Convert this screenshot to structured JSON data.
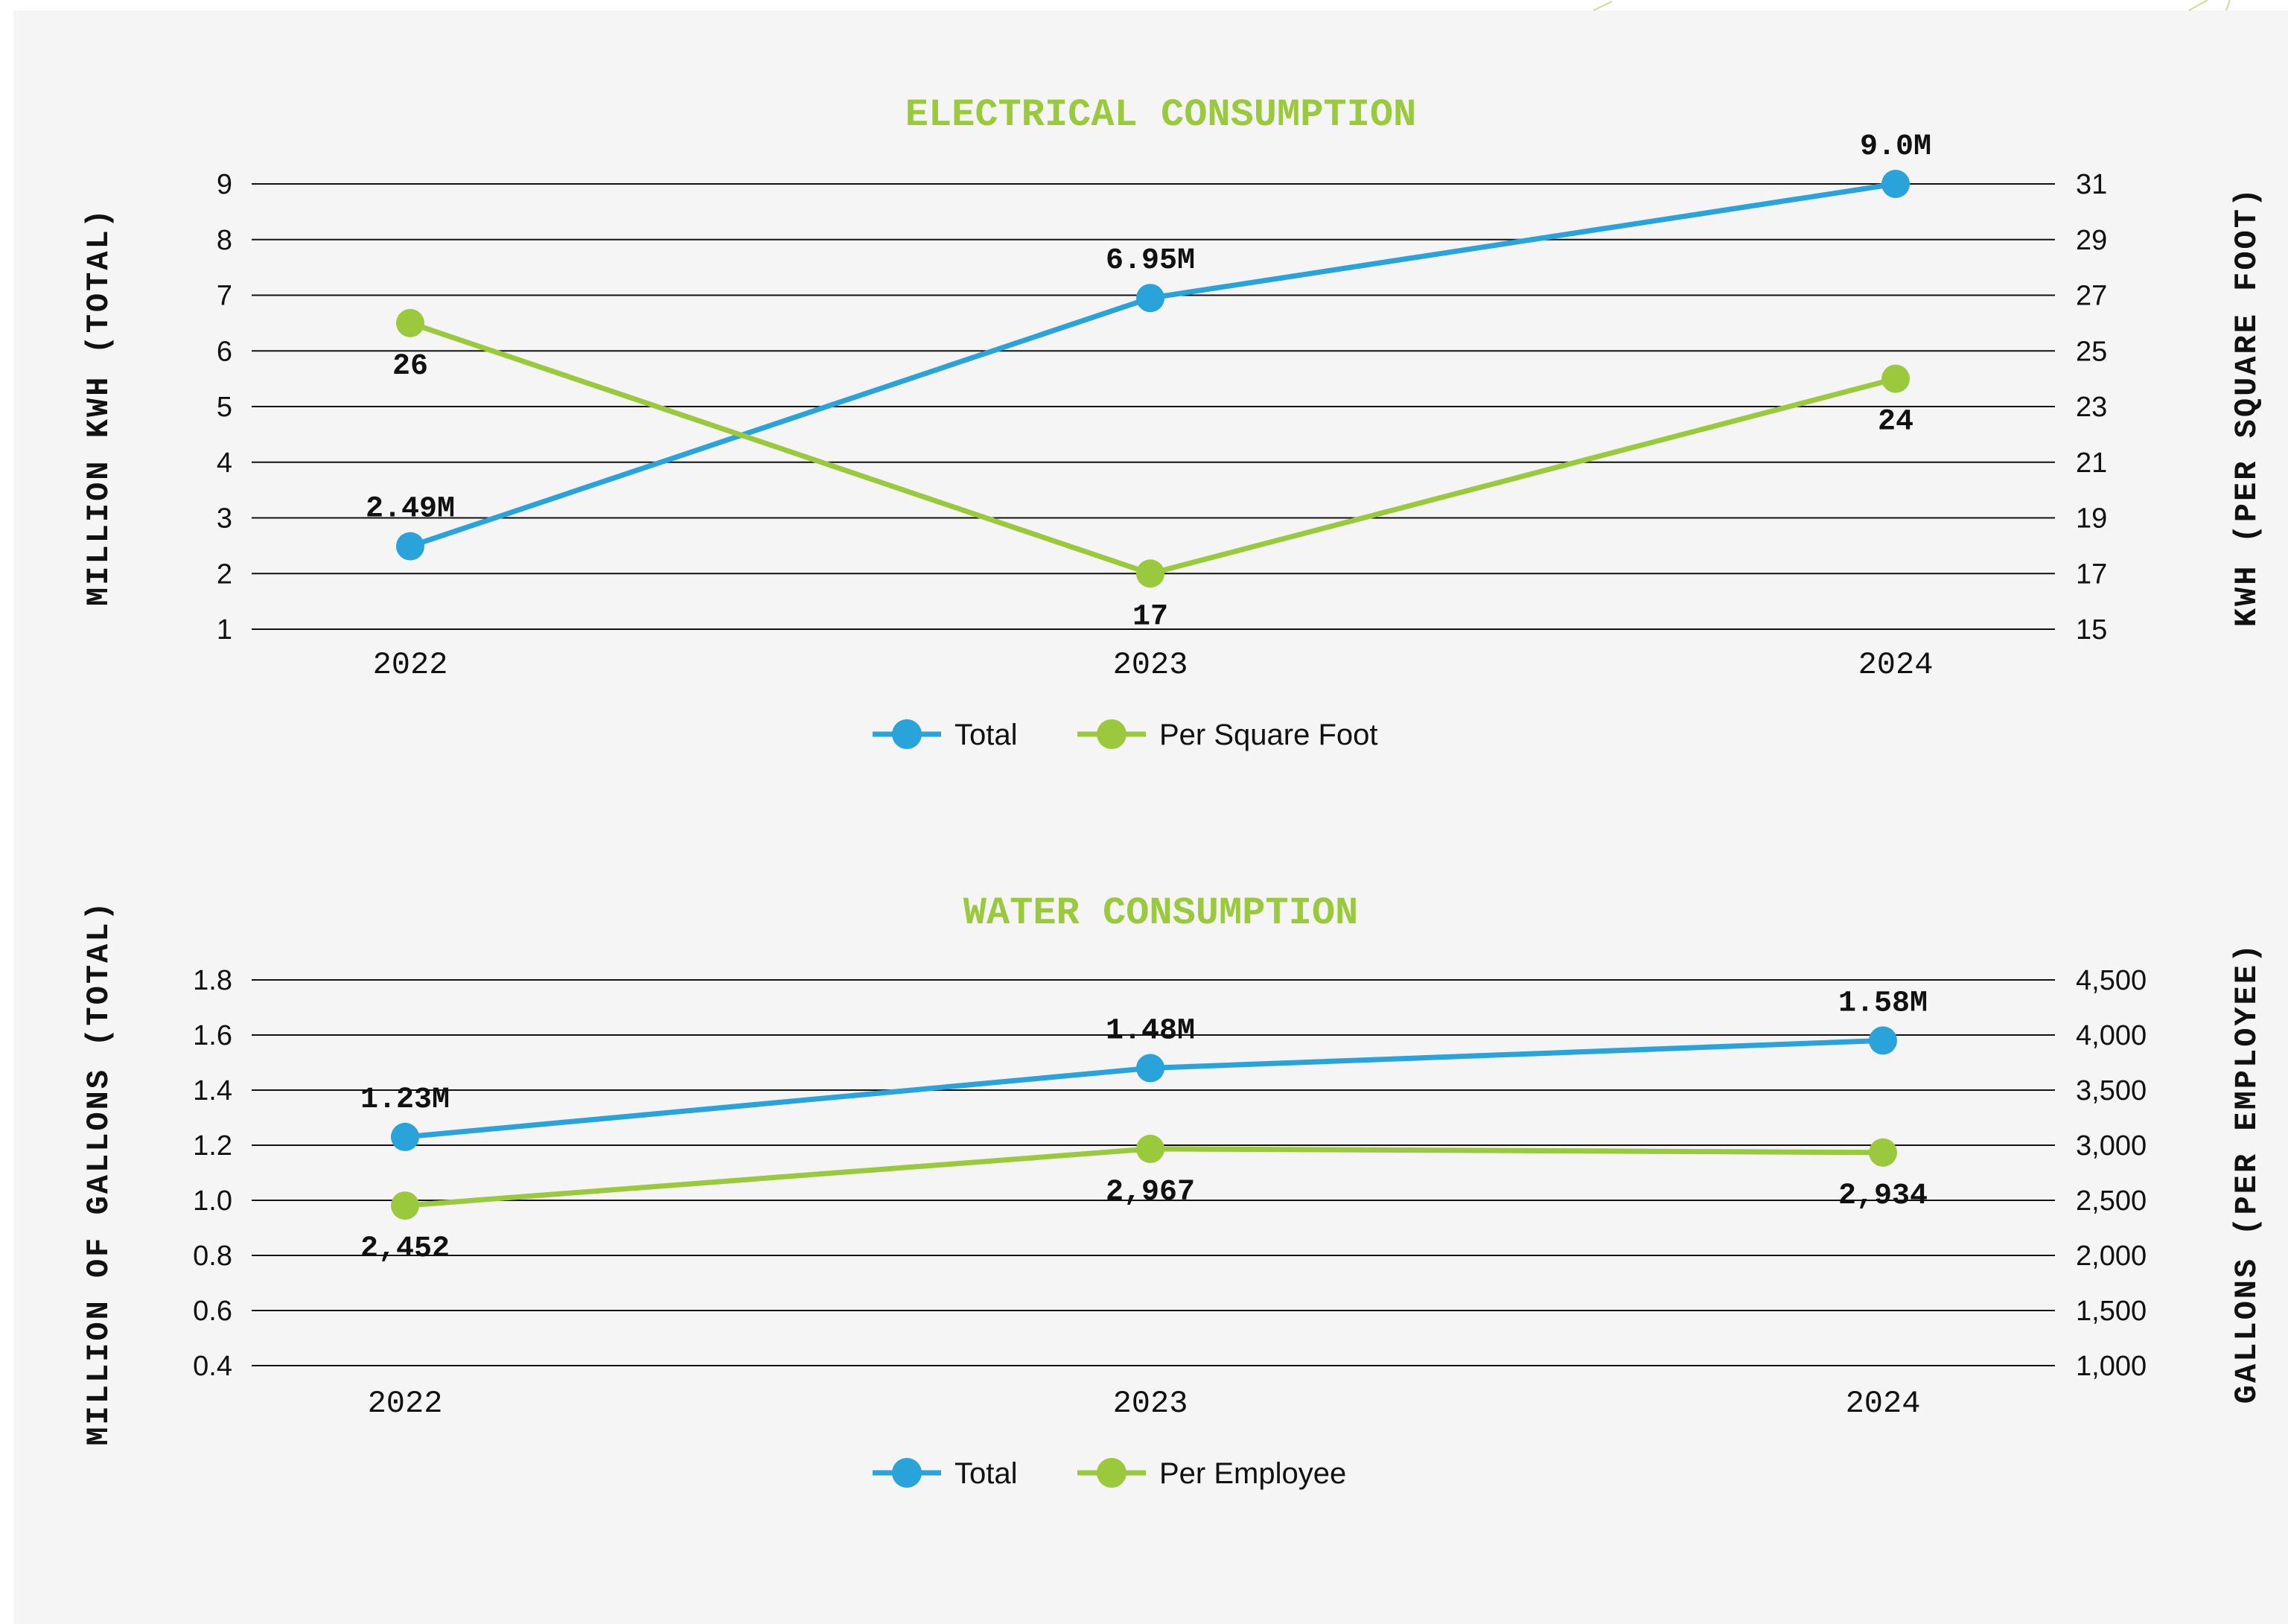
{
  "colors": {
    "title": "#9ac93d",
    "series_total": "#29a3d9",
    "series_secondary": "#9ac93d",
    "grid": "#111111",
    "background": "#f5f5f5"
  },
  "chart_data": [
    {
      "type": "line",
      "title": "ELECTRICAL CONSUMPTION",
      "categories": [
        "2022",
        "2023",
        "2024"
      ],
      "ylabel_left": "MILLION KWH (TOTAL)",
      "ylabel_right": "KWH (PER SQUARE FOOT)",
      "left_ticks": [
        "1",
        "2",
        "3",
        "4",
        "5",
        "6",
        "7",
        "8",
        "9"
      ],
      "right_ticks": [
        "15",
        "17",
        "19",
        "21",
        "23",
        "25",
        "27",
        "29",
        "31"
      ],
      "ylim_left": [
        1,
        9
      ],
      "ylim_right": [
        15,
        31
      ],
      "grid": true,
      "legend_position": "bottom",
      "series": [
        {
          "name": "Total",
          "axis": "left",
          "values": [
            2.49,
            6.95,
            9.0
          ],
          "labels": [
            "2.49M",
            "6.95M",
            "9.0M"
          ],
          "label_pos": "above"
        },
        {
          "name": "Per Square Foot",
          "axis": "right",
          "values": [
            26,
            17,
            24
          ],
          "labels": [
            "26",
            "17",
            "24"
          ],
          "label_pos": "below"
        }
      ]
    },
    {
      "type": "line",
      "title": "WATER CONSUMPTION",
      "categories": [
        "2022",
        "2023",
        "2024"
      ],
      "ylabel_left": "MILLION OF GALLONS (TOTAL)",
      "ylabel_right": "GALLONS (PER EMPLOYEE)",
      "left_ticks": [
        "0.4",
        "0.6",
        "0.8",
        "1.0",
        "1.2",
        "1.4",
        "1.6",
        "1.8"
      ],
      "right_ticks": [
        "1,000",
        "1,500",
        "2,000",
        "2,500",
        "3,000",
        "3,500",
        "4,000",
        "4,500"
      ],
      "ylim_left": [
        0.4,
        1.8
      ],
      "ylim_right": [
        1000,
        4500
      ],
      "grid": true,
      "legend_position": "bottom",
      "series": [
        {
          "name": "Total",
          "axis": "left",
          "values": [
            1.23,
            1.48,
            1.58
          ],
          "labels": [
            "1.23M",
            "1.48M",
            "1.58M"
          ],
          "label_pos": "above"
        },
        {
          "name": "Per Employee",
          "axis": "right",
          "values": [
            2452,
            2967,
            2934
          ],
          "labels": [
            "2,452",
            "2,967",
            "2,934"
          ],
          "label_pos": "below"
        }
      ]
    }
  ]
}
